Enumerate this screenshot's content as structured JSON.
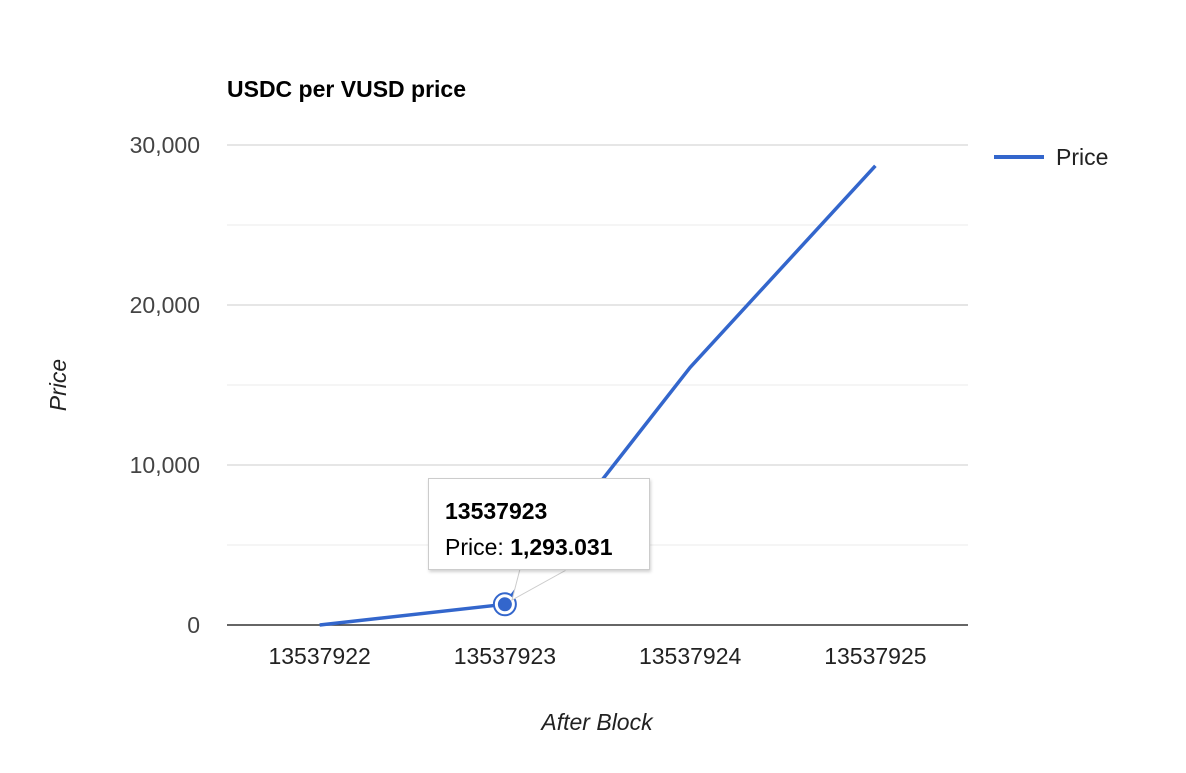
{
  "chart_data": {
    "type": "line",
    "title": "USDC per VUSD price",
    "xlabel": "After Block",
    "ylabel": "Price",
    "categories": [
      "13537922",
      "13537923",
      "13537924",
      "13537925"
    ],
    "series": [
      {
        "name": "Price",
        "values": [
          0,
          1293.031,
          16100,
          28700
        ],
        "color": "#3366cc"
      }
    ],
    "ylim": [
      0,
      30000
    ],
    "yticks": [
      {
        "value": 0,
        "label": "0"
      },
      {
        "value": 10000,
        "label": "10,000"
      },
      {
        "value": 20000,
        "label": "20,000"
      },
      {
        "value": 30000,
        "label": "30,000"
      }
    ],
    "minor_gridlines": [
      5000,
      15000,
      25000
    ],
    "grid": true,
    "legend": "right",
    "tooltip": {
      "category": "13537923",
      "series_label": "Price:",
      "value_text": "1,293.031",
      "point_index": 1
    }
  }
}
